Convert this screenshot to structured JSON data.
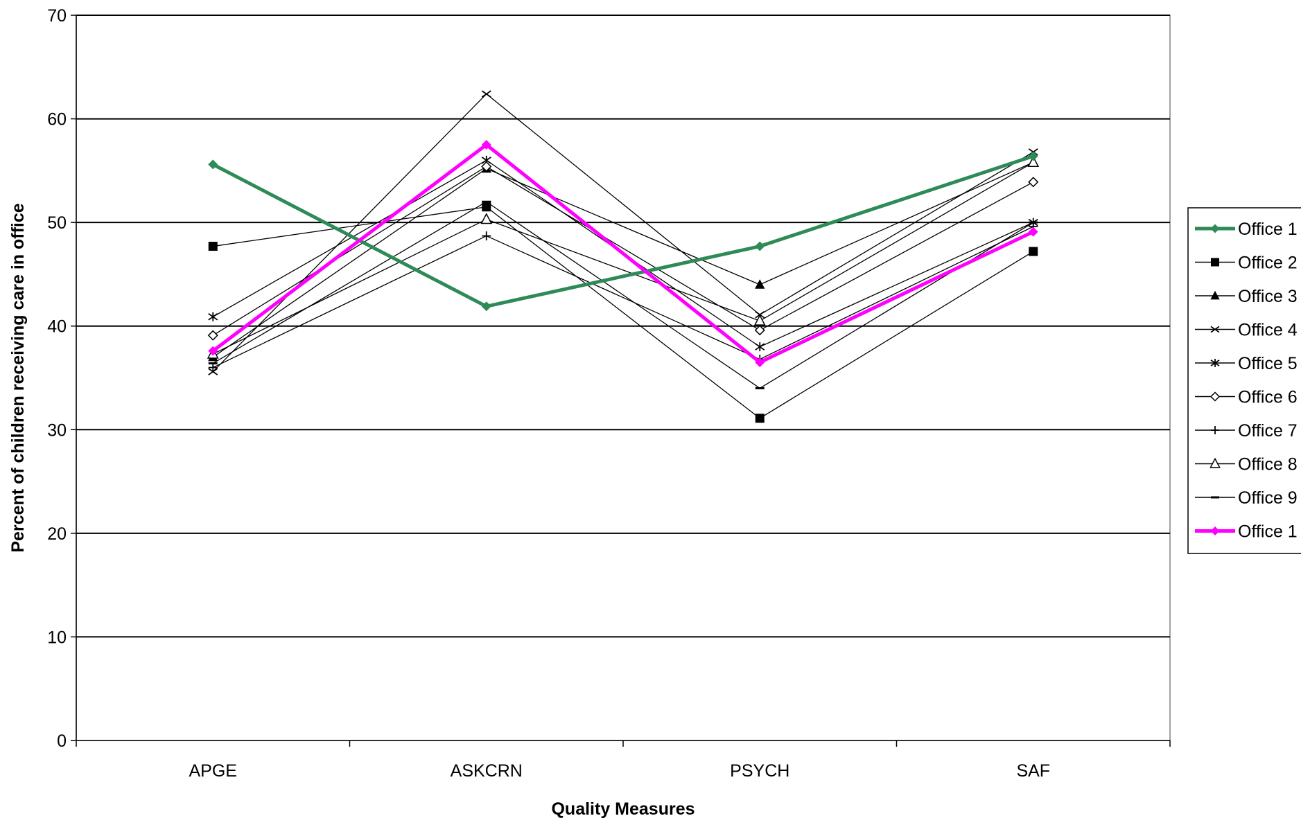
{
  "chart_data": {
    "type": "line",
    "title": "",
    "xlabel": "Quality Measures",
    "ylabel": "Percent of children receiving care in office",
    "categories": [
      "APGE",
      "ASKCRN",
      "PSYCH",
      "SAF"
    ],
    "ylim": [
      0,
      70
    ],
    "yticks": [
      0,
      10,
      20,
      30,
      40,
      50,
      60,
      70
    ],
    "grid": "horizontal",
    "legend_position": "right",
    "series": [
      {
        "name": "Office 1",
        "values": [
          55.6,
          41.9,
          47.7,
          56.4
        ],
        "color": "#2e8b57",
        "marker": "diamond-filled",
        "highlight": true
      },
      {
        "name": "Office 2",
        "values": [
          47.7,
          51.5,
          31.1,
          47.2
        ],
        "color": "#000000",
        "marker": "square-filled"
      },
      {
        "name": "Office 3",
        "values": [
          37.0,
          55.2,
          44.0,
          55.8
        ],
        "color": "#000000",
        "marker": "triangle-filled"
      },
      {
        "name": "Office 4",
        "values": [
          35.6,
          62.4,
          41.1,
          56.8
        ],
        "color": "#000000",
        "marker": "x"
      },
      {
        "name": "Office 5",
        "values": [
          40.9,
          56.0,
          38.0,
          50.0
        ],
        "color": "#000000",
        "marker": "asterisk"
      },
      {
        "name": "Office 6",
        "values": [
          39.1,
          55.4,
          39.6,
          53.9
        ],
        "color": "#000000",
        "marker": "diamond-open"
      },
      {
        "name": "Office 7",
        "values": [
          36.0,
          48.7,
          36.8,
          49.6
        ],
        "color": "#000000",
        "marker": "plus"
      },
      {
        "name": "Office 8",
        "values": [
          37.3,
          50.3,
          40.5,
          55.8
        ],
        "color": "#000000",
        "marker": "triangle-open"
      },
      {
        "name": "Office 9",
        "values": [
          36.4,
          52.0,
          34.0,
          50.0
        ],
        "color": "#000000",
        "marker": "dash"
      },
      {
        "name": "Office 1",
        "values": [
          37.6,
          57.5,
          36.5,
          49.1
        ],
        "color": "#ff00ff",
        "marker": "diamond-filled",
        "highlight": true
      }
    ]
  }
}
